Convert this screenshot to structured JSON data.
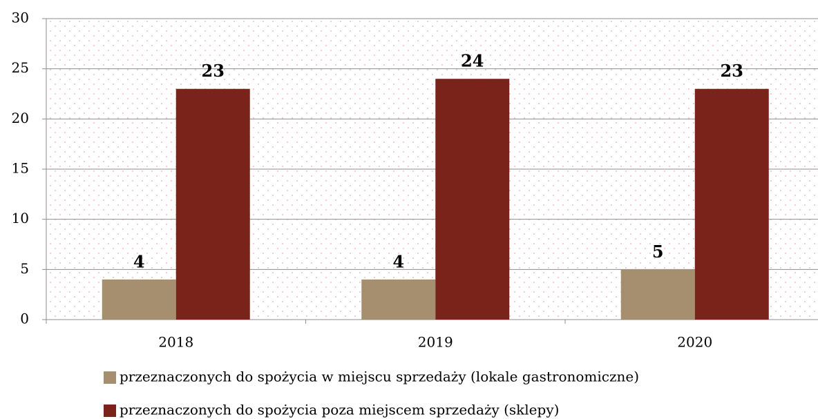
{
  "chart_data": {
    "type": "bar",
    "categories": [
      "2018",
      "2019",
      "2020"
    ],
    "series": [
      {
        "name": "przeznaczonych do spożycia w miejscu sprzedaży (lokale gastronomiczne)",
        "color": "#a58f6e",
        "values": [
          4,
          4,
          5
        ]
      },
      {
        "name": "przeznaczonych do spożycia poza miejscem sprzedaży (sklepy)",
        "color": "#7a231b",
        "values": [
          23,
          24,
          23
        ]
      }
    ],
    "ylim": [
      0,
      30
    ],
    "yticks": [
      0,
      5,
      10,
      15,
      20,
      25,
      30
    ],
    "grid": true,
    "legend": "bottom"
  }
}
